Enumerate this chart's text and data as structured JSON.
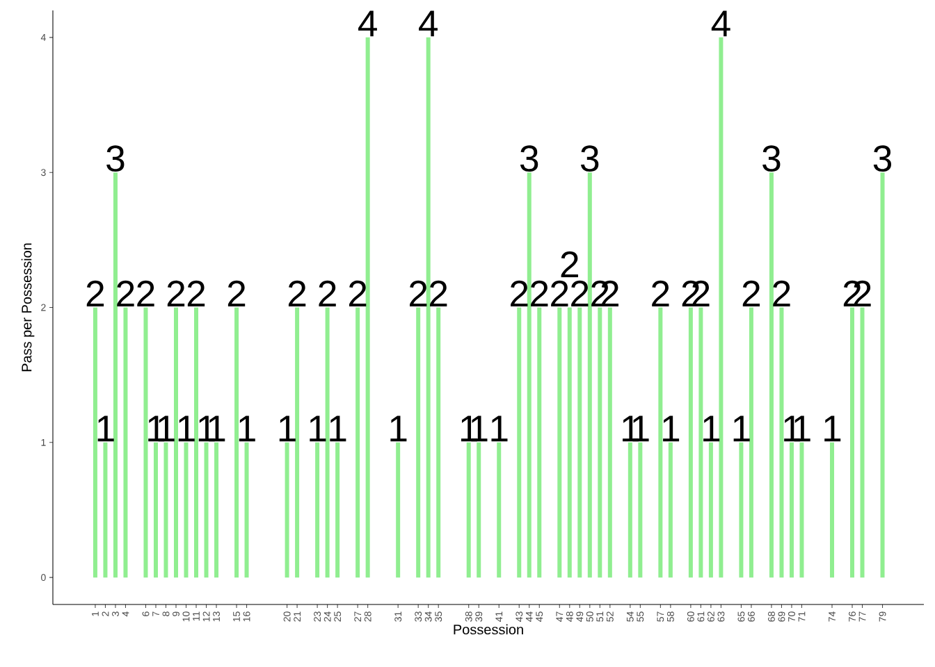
{
  "chart_data": {
    "type": "bar",
    "xlabel": "Possession",
    "ylabel": "Pass per Possession",
    "color": "#90ee90",
    "data_labels": true,
    "x": [
      1,
      2,
      3,
      4,
      6,
      7,
      8,
      9,
      10,
      11,
      12,
      13,
      15,
      16,
      20,
      21,
      23,
      24,
      25,
      27,
      28,
      31,
      33,
      34,
      35,
      38,
      39,
      41,
      43,
      44,
      45,
      47,
      48,
      49,
      50,
      51,
      52,
      54,
      55,
      57,
      58,
      60,
      61,
      62,
      63,
      65,
      66,
      68,
      69,
      70,
      71,
      74,
      76,
      77,
      79
    ],
    "values": [
      2,
      1,
      3,
      2,
      2,
      1,
      1,
      2,
      1,
      2,
      1,
      1,
      2,
      1,
      1,
      2,
      1,
      2,
      1,
      2,
      4,
      1,
      2,
      4,
      2,
      1,
      1,
      1,
      2,
      3,
      2,
      2,
      2,
      2,
      3,
      2,
      2,
      1,
      1,
      2,
      1,
      2,
      2,
      1,
      4,
      1,
      2,
      3,
      2,
      1,
      1,
      1,
      2,
      2,
      3
    ],
    "xlim": [
      -3.2,
      83.1
    ],
    "ylim": [
      -0.2,
      4.2
    ],
    "xticks": [
      1,
      2,
      3,
      4,
      6,
      7,
      8,
      9,
      10,
      11,
      12,
      13,
      15,
      16,
      20,
      21,
      23,
      24,
      25,
      27,
      28,
      31,
      33,
      34,
      35,
      38,
      39,
      41,
      43,
      44,
      45,
      47,
      48,
      49,
      50,
      51,
      52,
      54,
      55,
      57,
      58,
      60,
      61,
      62,
      63,
      65,
      66,
      68,
      69,
      70,
      71,
      74,
      76,
      77,
      79
    ],
    "yticks": [
      0,
      1,
      2,
      3,
      4
    ]
  }
}
